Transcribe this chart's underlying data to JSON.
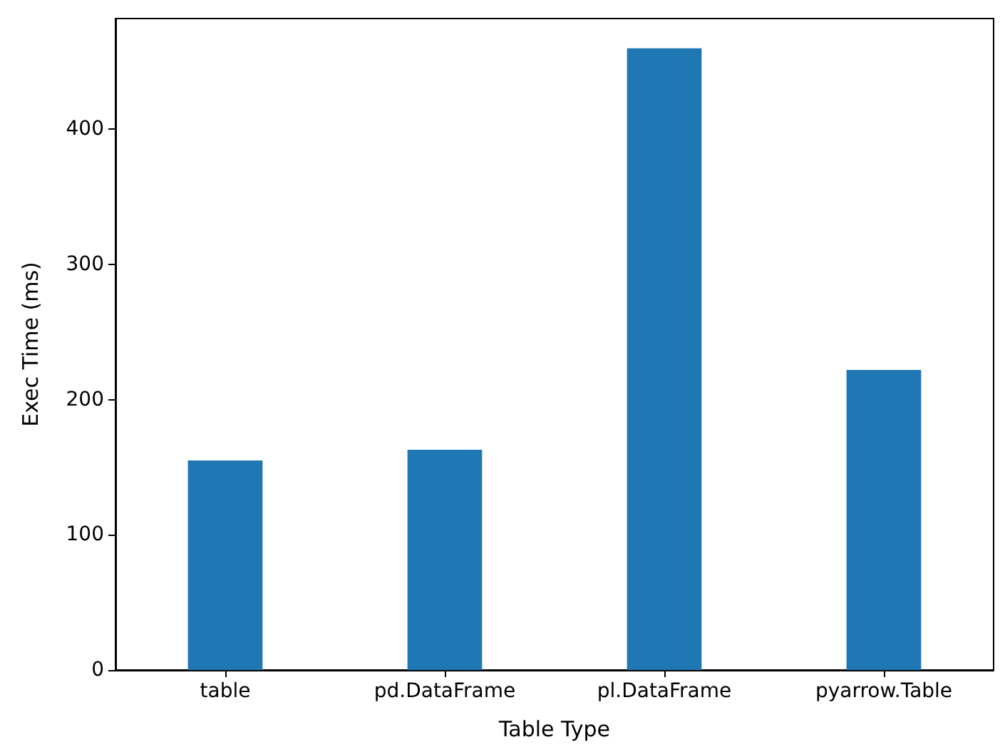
{
  "chart_data": {
    "type": "bar",
    "xlabel": "Table Type",
    "ylabel": "Exec Time (ms)",
    "categories": [
      "table",
      "pd.DataFrame",
      "pl.DataFrame",
      "pyarrow.Table"
    ],
    "values": [
      155,
      163,
      460,
      222
    ],
    "color": "#1f77b4",
    "ylim": [
      0,
      482
    ],
    "yticks": [
      0,
      100,
      200,
      300,
      400
    ],
    "grid": false
  }
}
